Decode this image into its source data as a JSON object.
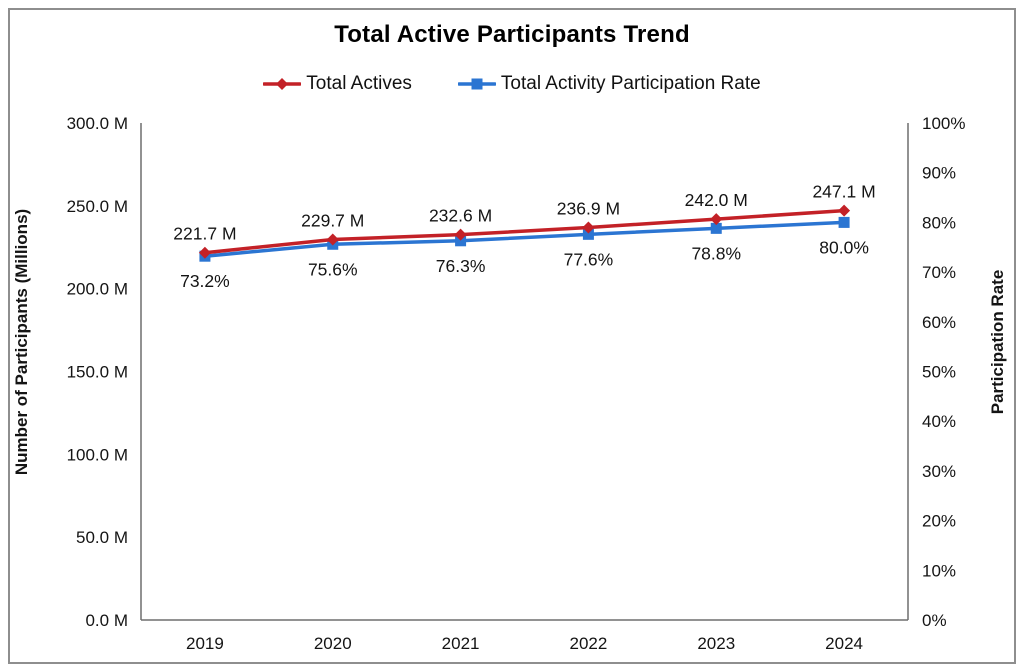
{
  "header": {
    "title": "Total Active Participants Trend"
  },
  "legend": {
    "items": [
      {
        "label": "Total Actives",
        "color": "#C32127",
        "marker": "diamond"
      },
      {
        "label": "Total Activity Participation Rate",
        "color": "#2B75D2",
        "marker": "square"
      }
    ]
  },
  "chart_data": {
    "type": "line",
    "title": "Total Active Participants Trend",
    "categories": [
      "2019",
      "2020",
      "2021",
      "2022",
      "2023",
      "2024"
    ],
    "series": [
      {
        "name": "Total Actives",
        "axis": "left",
        "color": "#C32127",
        "marker": "diamond",
        "label_position": "above",
        "values": [
          221.7,
          229.7,
          232.6,
          236.9,
          242.0,
          247.1
        ],
        "point_labels": [
          "221.7 M",
          "229.7 M",
          "232.6 M",
          "236.9 M",
          "242.0 M",
          "247.1 M"
        ]
      },
      {
        "name": "Total Activity Participation Rate",
        "axis": "right",
        "color": "#2B75D2",
        "marker": "square",
        "label_position": "below",
        "values": [
          73.2,
          75.6,
          76.3,
          77.6,
          78.8,
          80.0
        ],
        "point_labels": [
          "73.2%",
          "75.6%",
          "76.3%",
          "77.6%",
          "78.8%",
          "80.0%"
        ]
      }
    ],
    "left_axis": {
      "label": "Number of Participants (Millions)",
      "min": 0,
      "max": 300,
      "ticks": [
        {
          "v": 0,
          "t": "0.0 M"
        },
        {
          "v": 50,
          "t": "50.0 M"
        },
        {
          "v": 100,
          "t": "100.0 M"
        },
        {
          "v": 150,
          "t": "150.0 M"
        },
        {
          "v": 200,
          "t": "200.0 M"
        },
        {
          "v": 250,
          "t": "250.0 M"
        },
        {
          "v": 300,
          "t": "300.0 M"
        }
      ]
    },
    "right_axis": {
      "label": "Participation Rate",
      "min": 0,
      "max": 100,
      "ticks": [
        {
          "v": 0,
          "t": "0%"
        },
        {
          "v": 10,
          "t": "10%"
        },
        {
          "v": 20,
          "t": "20%"
        },
        {
          "v": 30,
          "t": "30%"
        },
        {
          "v": 40,
          "t": "40%"
        },
        {
          "v": 50,
          "t": "50%"
        },
        {
          "v": 60,
          "t": "60%"
        },
        {
          "v": 70,
          "t": "70%"
        },
        {
          "v": 80,
          "t": "80%"
        },
        {
          "v": 90,
          "t": "90%"
        },
        {
          "v": 100,
          "t": "100%"
        }
      ]
    },
    "grid": false,
    "legend_position": "top",
    "axis_color": "#6e6e6e",
    "text_color": "#141414"
  }
}
